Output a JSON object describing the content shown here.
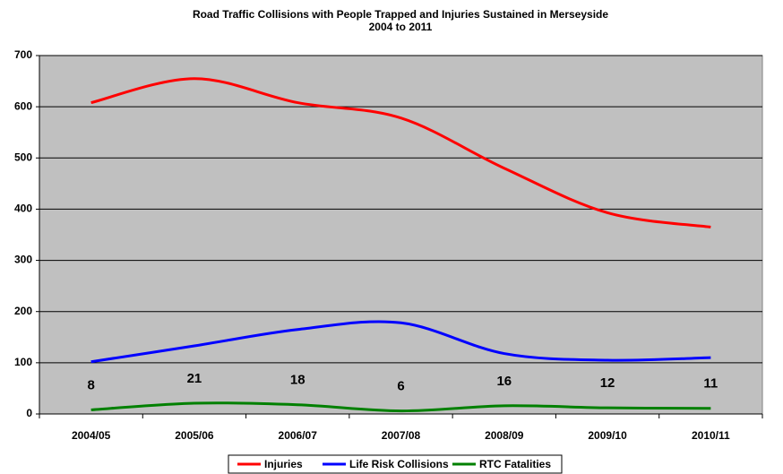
{
  "chart_data": {
    "type": "line",
    "title": "Road Traffic Collisions with People Trapped and Injuries Sustained in Merseyside",
    "subtitle": "2004 to 2011",
    "categories": [
      "2004/05",
      "2005/06",
      "2006/07",
      "2007/08",
      "2008/09",
      "2009/10",
      "2010/11"
    ],
    "series": [
      {
        "name": "Injuries",
        "color": "#ff0000",
        "values": [
          608,
          655,
          608,
          578,
          480,
          393,
          365
        ]
      },
      {
        "name": "Life Risk Collisions",
        "color": "#0000ff",
        "values": [
          102,
          133,
          165,
          178,
          118,
          105,
          110
        ]
      },
      {
        "name": "RTC Fatalities",
        "color": "#008000",
        "values": [
          8,
          21,
          18,
          6,
          16,
          12,
          11
        ],
        "data_labels": true
      }
    ],
    "ylim": [
      0,
      700
    ],
    "yticks": [
      0,
      100,
      200,
      300,
      400,
      500,
      600,
      700
    ],
    "grid": true,
    "smooth": true,
    "plot_background": "#c0c0c0",
    "legend": "bottom"
  }
}
